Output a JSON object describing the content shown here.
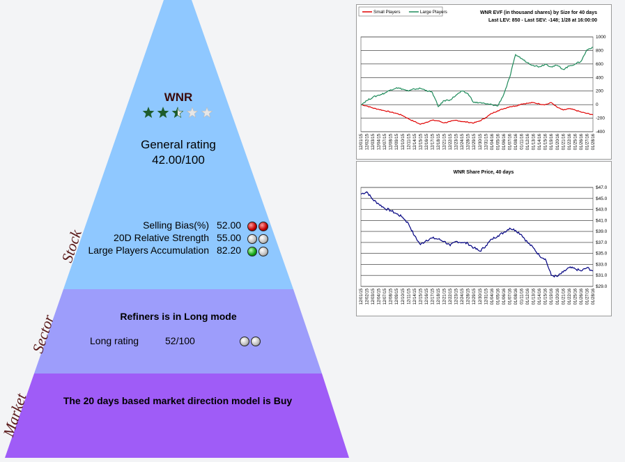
{
  "pyramid": {
    "ticker": "WNR",
    "stars": {
      "value": 2.5,
      "max": 5
    },
    "general_rating_label": "General rating",
    "general_rating_value": "42.00/100",
    "stock_label": "Stock",
    "sector_label": "Sector",
    "market_label": "Market",
    "metrics": [
      {
        "label": "Selling Bias(%)",
        "value": "52.00",
        "balls": [
          "red",
          "red"
        ]
      },
      {
        "label": "20D Relative Strength",
        "value": "55.00",
        "balls": [
          "grey",
          "grey"
        ]
      },
      {
        "label": "Large Players Accumulation",
        "value": "82.20",
        "balls": [
          "green",
          "grey"
        ]
      }
    ],
    "sector_mode": "Refiners is in Long mode",
    "long_rating_label": "Long rating",
    "long_rating_value": "52/100",
    "sector_balls": [
      "grey",
      "grey"
    ],
    "market_text": "The 20 days based market direction model is Buy",
    "colors": {
      "stock": "#8fc8ff",
      "sector": "#9d9dfb",
      "market": "#9f5cf7",
      "stars": "#1e5c2c"
    }
  },
  "chart_data": [
    {
      "type": "line",
      "title": "WNR EVF (in thousand shares) by Size for 40 days",
      "subtitle": "Last LEV: 850 - Last SEV: -148; 1/28 at 16:00:00",
      "x": [
        "12/01/15",
        "12/02/15",
        "12/03/15",
        "12/04/15",
        "12/07/15",
        "12/08/15",
        "12/09/15",
        "12/10/15",
        "12/11/15",
        "12/14/15",
        "12/15/15",
        "12/16/15",
        "12/17/15",
        "12/18/15",
        "12/21/15",
        "12/22/15",
        "12/23/15",
        "12/24/15",
        "12/28/15",
        "12/29/15",
        "12/30/15",
        "12/31/15",
        "01/04/16",
        "01/05/16",
        "01/06/16",
        "01/07/16",
        "01/08/16",
        "01/11/16",
        "01/12/16",
        "01/13/16",
        "01/14/16",
        "01/15/16",
        "01/19/16",
        "01/20/16",
        "01/21/16",
        "01/22/16",
        "01/25/16",
        "01/26/16",
        "01/27/16",
        "01/28/16"
      ],
      "ylim": [
        -400,
        1000
      ],
      "yticks": [
        -400,
        -200,
        0,
        200,
        400,
        600,
        800,
        1000
      ],
      "ytick_labels": [
        "-400",
        "-200",
        "0",
        "200",
        "400",
        "600",
        "800",
        "1000"
      ],
      "legend_position": "top-left",
      "series": [
        {
          "name": "Small Players",
          "color": "#e00000",
          "values": [
            0,
            -20,
            -50,
            -70,
            -90,
            -110,
            -130,
            -160,
            -210,
            -250,
            -290,
            -260,
            -230,
            -240,
            -270,
            -250,
            -230,
            -250,
            -260,
            -270,
            -240,
            -190,
            -130,
            -90,
            -60,
            -30,
            -20,
            10,
            20,
            30,
            10,
            0,
            30,
            -40,
            -80,
            -60,
            -80,
            -110,
            -130,
            -148
          ]
        },
        {
          "name": "Large Players",
          "color": "#1e8a5a",
          "values": [
            0,
            60,
            110,
            140,
            170,
            220,
            250,
            230,
            200,
            230,
            240,
            210,
            180,
            -30,
            60,
            70,
            140,
            200,
            160,
            30,
            30,
            10,
            0,
            -20,
            150,
            400,
            740,
            680,
            620,
            580,
            560,
            600,
            560,
            580,
            520,
            570,
            600,
            640,
            810,
            850
          ]
        }
      ]
    },
    {
      "type": "line",
      "title": "WNR Share Price, 40 days",
      "x": [
        "12/01/15",
        "12/02/15",
        "12/03/15",
        "12/04/15",
        "12/07/15",
        "12/08/15",
        "12/09/15",
        "12/10/15",
        "12/11/15",
        "12/14/15",
        "12/15/15",
        "12/16/15",
        "12/17/15",
        "12/18/15",
        "12/21/15",
        "12/22/15",
        "12/23/15",
        "12/24/15",
        "12/28/15",
        "12/29/15",
        "12/30/15",
        "12/31/15",
        "01/04/16",
        "01/05/16",
        "01/06/16",
        "01/07/16",
        "01/08/16",
        "01/11/16",
        "01/12/16",
        "01/13/16",
        "01/14/16",
        "01/15/16",
        "01/19/16",
        "01/20/16",
        "01/21/16",
        "01/22/16",
        "01/25/16",
        "01/26/16",
        "01/27/16",
        "01/28/16"
      ],
      "ylim": [
        29,
        47
      ],
      "yticks": [
        29,
        31,
        33,
        35,
        37,
        39,
        41,
        43,
        45,
        47
      ],
      "ytick_labels": [
        "$29.0",
        "$31.0",
        "$33.0",
        "$35.0",
        "$37.0",
        "$39.0",
        "$41.0",
        "$43.0",
        "$45.0",
        "$47.0"
      ],
      "series": [
        {
          "name": "",
          "color": "#000080",
          "values": [
            45.8,
            46.2,
            44.8,
            44.0,
            43.2,
            42.8,
            42.2,
            41.6,
            40.4,
            38.2,
            36.6,
            37.4,
            37.8,
            37.6,
            37.2,
            36.4,
            37.2,
            37.0,
            36.8,
            36.0,
            35.4,
            36.4,
            37.6,
            38.2,
            38.8,
            39.6,
            39.2,
            38.4,
            37.0,
            36.0,
            34.6,
            34.0,
            31.0,
            30.8,
            31.6,
            32.4,
            32.2,
            31.8,
            32.4,
            31.8
          ]
        }
      ]
    }
  ]
}
